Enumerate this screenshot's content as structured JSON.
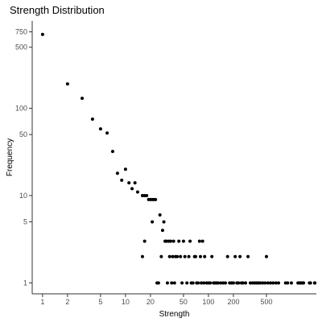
{
  "chart_data": {
    "type": "scatter",
    "title": "Strength Distribution",
    "xlabel": "Strength",
    "ylabel": "Frequency",
    "x_scale": "log10",
    "y_scale": "log10",
    "xlim": [
      0.75,
      2000
    ],
    "ylim": [
      0.75,
      1000
    ],
    "x_ticks": [
      1,
      2,
      5,
      10,
      20,
      50,
      100,
      200,
      500
    ],
    "y_ticks": [
      1,
      5,
      10,
      50,
      100,
      500,
      750
    ],
    "grid": false,
    "points": [
      [
        1,
        700
      ],
      [
        2,
        190
      ],
      [
        3,
        130
      ],
      [
        4,
        75
      ],
      [
        5,
        58
      ],
      [
        6,
        52
      ],
      [
        7,
        32
      ],
      [
        8,
        18
      ],
      [
        9,
        15
      ],
      [
        10,
        20
      ],
      [
        11,
        14
      ],
      [
        12,
        12
      ],
      [
        13,
        14
      ],
      [
        14,
        11
      ],
      [
        16,
        10
      ],
      [
        17,
        10
      ],
      [
        18,
        10
      ],
      [
        19,
        9
      ],
      [
        20,
        9
      ],
      [
        21,
        9
      ],
      [
        22,
        9
      ],
      [
        16,
        2
      ],
      [
        17,
        3
      ],
      [
        21,
        5
      ],
      [
        23,
        9
      ],
      [
        24,
        1
      ],
      [
        25,
        1
      ],
      [
        26,
        6
      ],
      [
        27,
        2
      ],
      [
        28,
        4
      ],
      [
        29,
        5
      ],
      [
        30,
        3
      ],
      [
        31,
        3
      ],
      [
        32,
        1
      ],
      [
        33,
        3
      ],
      [
        34,
        2
      ],
      [
        35,
        3
      ],
      [
        36,
        1
      ],
      [
        37,
        2
      ],
      [
        38,
        3
      ],
      [
        39,
        1
      ],
      [
        40,
        2
      ],
      [
        42,
        2
      ],
      [
        44,
        3
      ],
      [
        46,
        2
      ],
      [
        48,
        1
      ],
      [
        50,
        3
      ],
      [
        52,
        2
      ],
      [
        55,
        1
      ],
      [
        58,
        2
      ],
      [
        60,
        3
      ],
      [
        62,
        1
      ],
      [
        65,
        1
      ],
      [
        68,
        2
      ],
      [
        70,
        2
      ],
      [
        72,
        1
      ],
      [
        75,
        1
      ],
      [
        78,
        3
      ],
      [
        80,
        2
      ],
      [
        82,
        1
      ],
      [
        85,
        3
      ],
      [
        88,
        1
      ],
      [
        90,
        2
      ],
      [
        95,
        1
      ],
      [
        100,
        1
      ],
      [
        105,
        1
      ],
      [
        110,
        2
      ],
      [
        115,
        1
      ],
      [
        120,
        1
      ],
      [
        125,
        1
      ],
      [
        130,
        1
      ],
      [
        140,
        1
      ],
      [
        150,
        1
      ],
      [
        160,
        1
      ],
      [
        170,
        2
      ],
      [
        180,
        1
      ],
      [
        190,
        1
      ],
      [
        200,
        1
      ],
      [
        210,
        2
      ],
      [
        220,
        1
      ],
      [
        230,
        1
      ],
      [
        240,
        2
      ],
      [
        250,
        1
      ],
      [
        260,
        1
      ],
      [
        280,
        1
      ],
      [
        300,
        2
      ],
      [
        320,
        1
      ],
      [
        340,
        1
      ],
      [
        360,
        1
      ],
      [
        380,
        1
      ],
      [
        400,
        1
      ],
      [
        420,
        1
      ],
      [
        450,
        1
      ],
      [
        480,
        1
      ],
      [
        500,
        2
      ],
      [
        520,
        1
      ],
      [
        560,
        1
      ],
      [
        600,
        1
      ],
      [
        650,
        1
      ],
      [
        700,
        1
      ],
      [
        850,
        1
      ],
      [
        900,
        1
      ],
      [
        1000,
        1
      ],
      [
        1200,
        1
      ],
      [
        1250,
        1
      ],
      [
        1300,
        1
      ],
      [
        1350,
        1
      ],
      [
        1400,
        1
      ],
      [
        1650,
        1
      ],
      [
        1700,
        1
      ],
      [
        2000,
        1
      ],
      [
        2250,
        1
      ],
      [
        2700,
        1
      ]
    ]
  }
}
